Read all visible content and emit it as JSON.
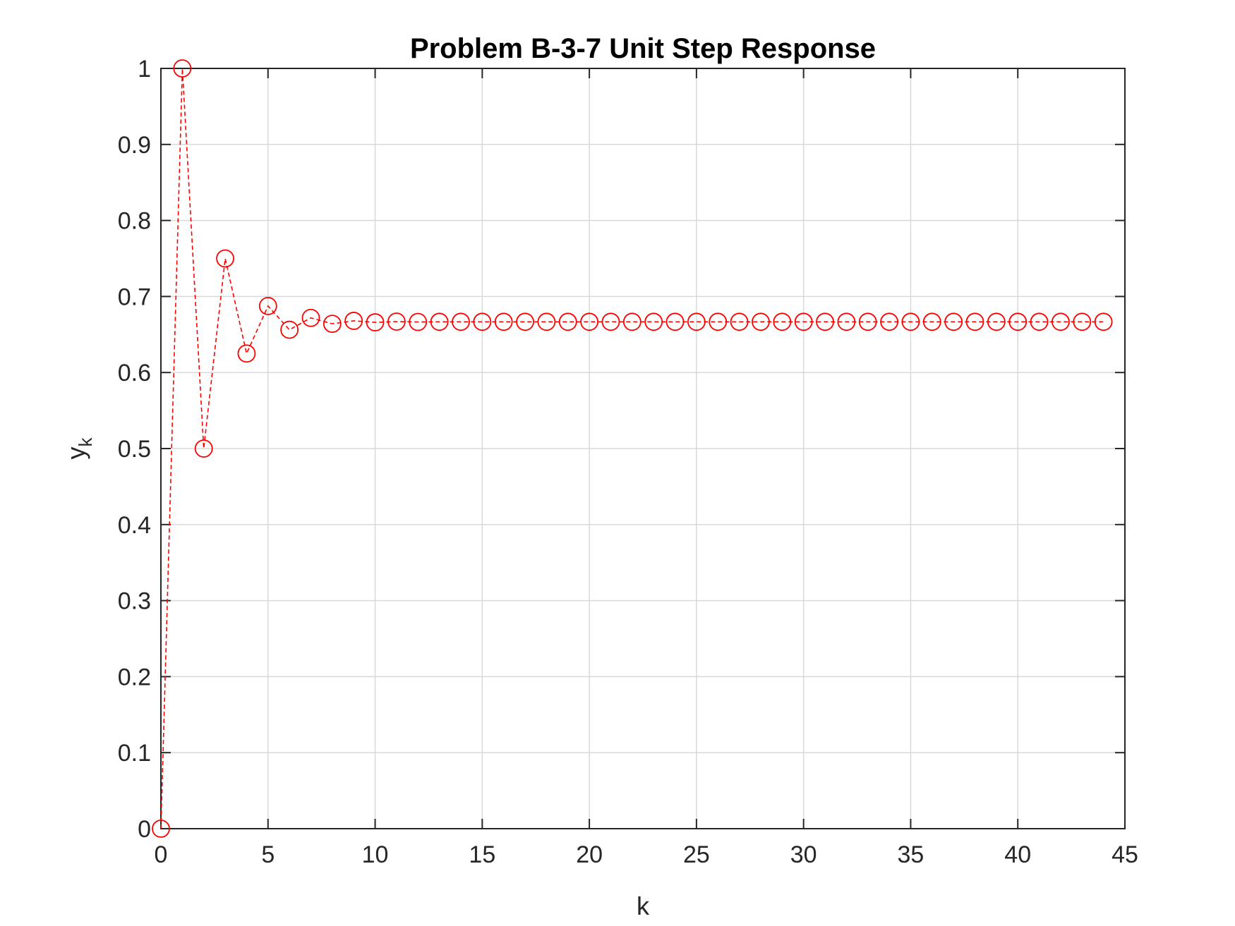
{
  "chart_data": {
    "type": "scatter",
    "title": "Problem B-3-7 Unit Step Response",
    "xlabel": "k",
    "ylabel": {
      "base": "y",
      "subscript": "k"
    },
    "xlim": [
      0,
      45
    ],
    "ylim": [
      0,
      1
    ],
    "xticks": [
      0,
      5,
      10,
      15,
      20,
      25,
      30,
      35,
      40,
      45
    ],
    "yticks": [
      0,
      0.1,
      0.2,
      0.3,
      0.4,
      0.5,
      0.6,
      0.7,
      0.8,
      0.9,
      1
    ],
    "xtick_labels": [
      "0",
      "5",
      "10",
      "15",
      "20",
      "25",
      "30",
      "35",
      "40",
      "45"
    ],
    "ytick_labels": [
      "0",
      "0.1",
      "0.2",
      "0.3",
      "0.4",
      "0.5",
      "0.6",
      "0.7",
      "0.8",
      "0.9",
      "1"
    ],
    "grid": true,
    "series": [
      {
        "marker": "circle",
        "line_style": "dashed",
        "color": "#ff0000",
        "x": [
          0,
          1,
          2,
          3,
          4,
          5,
          6,
          7,
          8,
          9,
          10,
          11,
          12,
          13,
          14,
          15,
          16,
          17,
          18,
          19,
          20,
          21,
          22,
          23,
          24,
          25,
          26,
          27,
          28,
          29,
          30,
          31,
          32,
          33,
          34,
          35,
          36,
          37,
          38,
          39,
          40,
          41,
          42,
          43,
          44
        ],
        "y": [
          0,
          1,
          0.5,
          0.75,
          0.625,
          0.6875,
          0.65625,
          0.671875,
          0.6640625,
          0.66796875,
          0.666,
          0.667,
          0.6665,
          0.6667,
          0.6667,
          0.6667,
          0.6667,
          0.6667,
          0.6667,
          0.6667,
          0.6667,
          0.6667,
          0.6667,
          0.6667,
          0.6667,
          0.6667,
          0.6667,
          0.6667,
          0.6667,
          0.6667,
          0.6667,
          0.6667,
          0.6667,
          0.6667,
          0.6667,
          0.6667,
          0.6667,
          0.6667,
          0.6667,
          0.6667,
          0.6667,
          0.6667,
          0.6667,
          0.6667,
          0.6667
        ]
      }
    ]
  },
  "colors": {
    "axis": "#262626",
    "grid": "#d9d9d9",
    "series": "#ff0000"
  }
}
